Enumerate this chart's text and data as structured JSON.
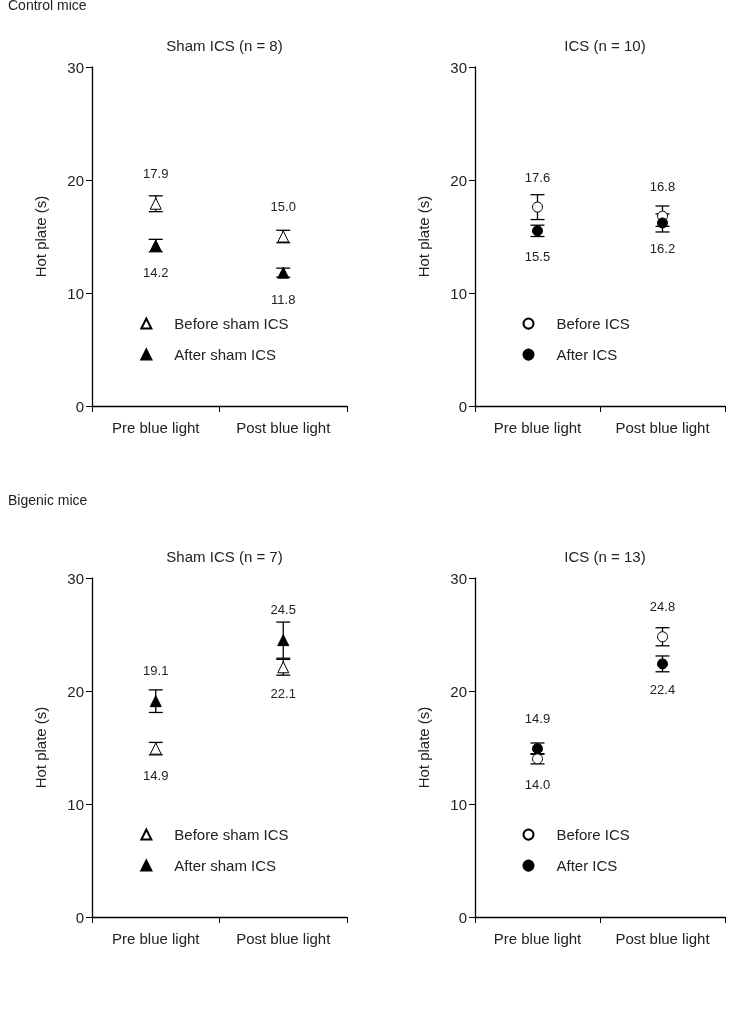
{
  "chart_data": [
    {
      "type": "scatter",
      "title": "Sham ICS (n = 8)",
      "annotations": [
        "Control mice"
      ],
      "ylabel": "Hot plate (s)",
      "categories": [
        "Pre blue light",
        "Post blue light"
      ],
      "ylim": [
        0,
        30
      ],
      "yticks": [
        0,
        10,
        20,
        30
      ],
      "legend": "bottom",
      "grid": false,
      "series": [
        {
          "name": "Before sham ICS",
          "marker": "triangle",
          "color": "#ffffff",
          "values": [
            17.9,
            15.0
          ],
          "errors": [
            0.7,
            0.55
          ],
          "value_labels": [
            "17.9",
            "15.0"
          ]
        },
        {
          "name": "After sham ICS",
          "marker": "triangle",
          "color": "#000000",
          "values": [
            14.2,
            11.8
          ],
          "errors": [
            0.55,
            0.4
          ],
          "value_labels": [
            "14.2",
            "11.8"
          ]
        }
      ]
    },
    {
      "type": "scatter",
      "title": "ICS (n = 10)",
      "ylabel": "Hot plate (s)",
      "categories": [
        "Pre blue light",
        "Post blue light"
      ],
      "ylim": [
        0,
        30
      ],
      "yticks": [
        0,
        10,
        20,
        30
      ],
      "legend": "bottom",
      "grid": false,
      "series": [
        {
          "name": "Before ICS",
          "marker": "circle",
          "color": "#ffffff",
          "values": [
            17.6,
            16.8
          ],
          "errors": [
            1.1,
            0.9
          ],
          "value_labels": [
            "17.6",
            "16.8"
          ]
        },
        {
          "name": "After ICS",
          "marker": "circle",
          "color": "#000000",
          "values": [
            15.5,
            16.2
          ],
          "errors": [
            0.5,
            0.8
          ],
          "value_labels": [
            "15.5",
            "16.2"
          ]
        }
      ]
    },
    {
      "type": "scatter",
      "title": "Sham ICS (n = 7)",
      "annotations": [
        "Bigenic mice"
      ],
      "ylabel": "Hot plate (s)",
      "categories": [
        "Pre blue light",
        "Post blue light"
      ],
      "ylim": [
        0,
        30
      ],
      "yticks": [
        0,
        10,
        20,
        30
      ],
      "legend": "bottom",
      "grid": false,
      "series": [
        {
          "name": "Before sham ICS",
          "marker": "triangle",
          "color": "#ffffff",
          "values": [
            14.9,
            22.1
          ],
          "errors": [
            0.55,
            0.7
          ],
          "value_labels": [
            "14.9",
            "22.1"
          ]
        },
        {
          "name": "After sham ICS",
          "marker": "triangle",
          "color": "#000000",
          "values": [
            19.1,
            24.5
          ],
          "errors": [
            1.0,
            1.6
          ],
          "value_labels": [
            "19.1",
            "24.5"
          ]
        }
      ]
    },
    {
      "type": "scatter",
      "title": "ICS (n = 13)",
      "ylabel": "Hot plate (s)",
      "categories": [
        "Pre blue light",
        "Post blue light"
      ],
      "ylim": [
        0,
        30
      ],
      "yticks": [
        0,
        10,
        20,
        30
      ],
      "legend": "bottom",
      "grid": false,
      "series": [
        {
          "name": "Before ICS",
          "marker": "circle",
          "color": "#ffffff",
          "values": [
            14.0,
            24.8
          ],
          "errors": [
            0.45,
            0.8
          ],
          "value_labels": [
            "14.0",
            "24.8"
          ]
        },
        {
          "name": "After ICS",
          "marker": "circle",
          "color": "#000000",
          "values": [
            14.9,
            22.4
          ],
          "errors": [
            0.5,
            0.7
          ],
          "value_labels": [
            "14.9",
            "22.4"
          ]
        }
      ]
    }
  ]
}
